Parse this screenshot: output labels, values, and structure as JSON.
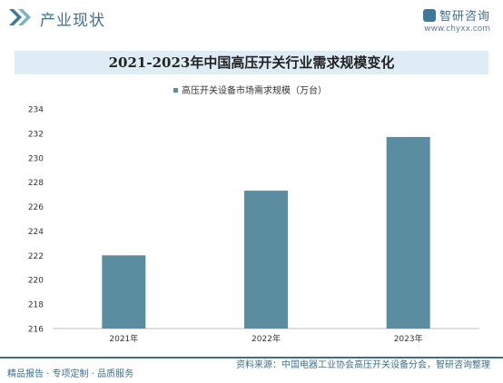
{
  "header": {
    "section_title": "产业现状",
    "logo_name": "智研咨询",
    "logo_url": "www.chyxx.com"
  },
  "colors": {
    "bar": "#5b8da1",
    "accent": "#3d6f8c",
    "banner": "#deedf5"
  },
  "chart_data": {
    "type": "bar",
    "title": "2021-2023年中国高压开关行业需求规模变化",
    "categories": [
      "2021年",
      "2022年",
      "2023年"
    ],
    "series": [
      {
        "name": "高压开关设备市场需求规模（万台）",
        "values": [
          222,
          227.3,
          231.7
        ]
      }
    ],
    "ylim": [
      216,
      234
    ],
    "yticks": [
      216,
      218,
      220,
      222,
      224,
      226,
      228,
      230,
      232,
      234
    ],
    "legend": "top"
  },
  "footer": {
    "left": "精品报告 · 专项定制 · 品质服务",
    "source": "资料来源：中国电器工业协会高压开关设备分会，智研咨询整理"
  }
}
